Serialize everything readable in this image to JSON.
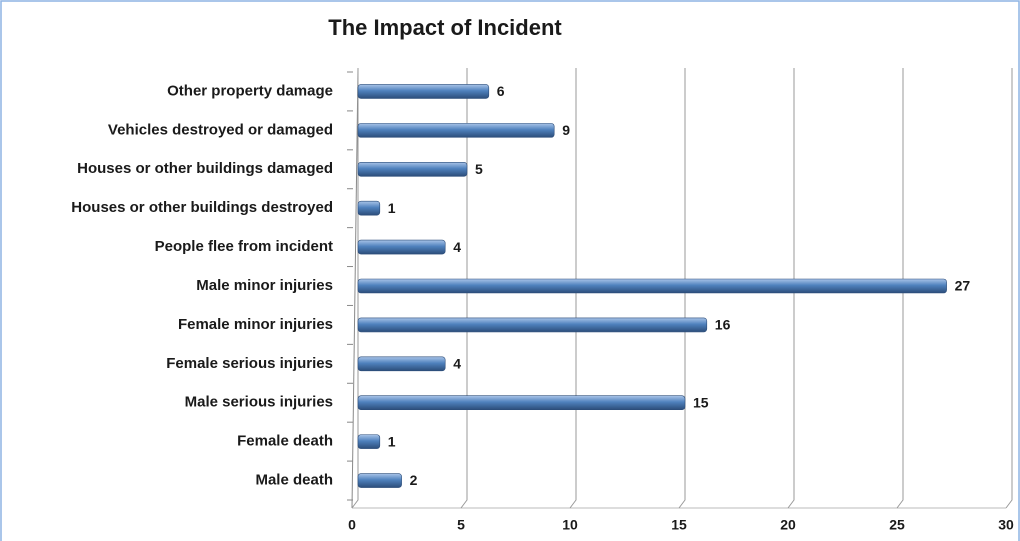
{
  "chart_data": {
    "type": "bar",
    "orientation": "horizontal",
    "title": "The Impact of Incident",
    "categories": [
      "Other property damage",
      "Vehicles destroyed or damaged",
      "Houses or other buildings damaged",
      "Houses or other buildings destroyed",
      "People flee from incident",
      "Male minor injuries",
      "Female minor injuries",
      "Female serious injuries",
      "Male serious injuries",
      "Female death",
      "Male death"
    ],
    "values": [
      6,
      9,
      5,
      1,
      4,
      27,
      16,
      4,
      15,
      1,
      2
    ],
    "color": "#4f81bd",
    "xlim": [
      0,
      30
    ],
    "xticks": [
      0,
      5,
      10,
      15,
      20,
      25,
      30
    ],
    "grid": true
  }
}
